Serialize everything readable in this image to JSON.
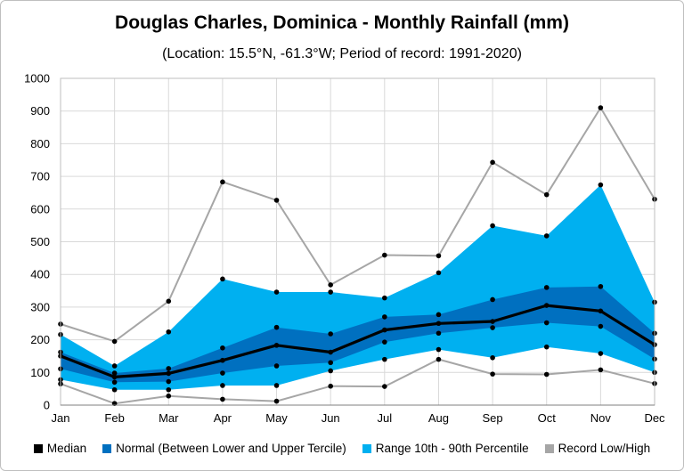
{
  "title": "Douglas Charles, Dominica - Monthly Rainfall (mm)",
  "subtitle": "(Location: 15.5°N, -61.3°W; Period of record: 1991-2020)",
  "colors": {
    "median": "#000000",
    "normal": "#0070c0",
    "range": "#00b0f0",
    "record": "#a6a6a6",
    "grid": "#d9d9d9"
  },
  "legend": [
    {
      "label": "Median",
      "color": "#000000"
    },
    {
      "label": "Normal (Between Lower and Upper Tercile)",
      "color": "#0070c0"
    },
    {
      "label": "Range 10th - 90th Percentile",
      "color": "#00b0f0"
    },
    {
      "label": "Record Low/High",
      "color": "#a6a6a6"
    }
  ],
  "chart_data": {
    "type": "area",
    "categories": [
      "Jan",
      "Feb",
      "Mar",
      "Apr",
      "May",
      "Jun",
      "Jul",
      "Aug",
      "Sep",
      "Oct",
      "Nov",
      "Dec"
    ],
    "ylim": [
      0,
      1000
    ],
    "yticks": [
      "0",
      "100",
      "200",
      "300",
      "400",
      "500",
      "600",
      "700",
      "800",
      "900",
      "1000"
    ],
    "grid": true,
    "legend_position": "bottom",
    "series": [
      {
        "name": "Record Low/High",
        "role": "record_high",
        "values": [
          248,
          195,
          318,
          683,
          627,
          368,
          459,
          457,
          743,
          644,
          910,
          630
        ]
      },
      {
        "name": "Range 10th - 90th Percentile",
        "role": "p90",
        "values": [
          216,
          120,
          224,
          386,
          346,
          346,
          328,
          405,
          549,
          518,
          674,
          315
        ]
      },
      {
        "name": "Normal (Between Lower and Upper Tercile)",
        "role": "upper_tercile",
        "values": [
          162,
          98,
          112,
          175,
          238,
          218,
          270,
          277,
          323,
          360,
          363,
          220
        ]
      },
      {
        "name": "Median",
        "role": "median",
        "values": [
          150,
          86,
          97,
          137,
          183,
          162,
          230,
          250,
          256,
          305,
          288,
          185
        ]
      },
      {
        "name": "Normal (Between Lower and Upper Tercile)",
        "role": "lower_tercile",
        "values": [
          111,
          70,
          72,
          98,
          120,
          130,
          193,
          220,
          237,
          252,
          241,
          141
        ]
      },
      {
        "name": "Range 10th - 90th Percentile",
        "role": "p10",
        "values": [
          78,
          47,
          47,
          60,
          60,
          105,
          140,
          170,
          145,
          178,
          158,
          100
        ]
      },
      {
        "name": "Record Low/High",
        "role": "record_low",
        "values": [
          65,
          5,
          28,
          18,
          12,
          58,
          57,
          140,
          95,
          94,
          108,
          66
        ]
      }
    ]
  }
}
